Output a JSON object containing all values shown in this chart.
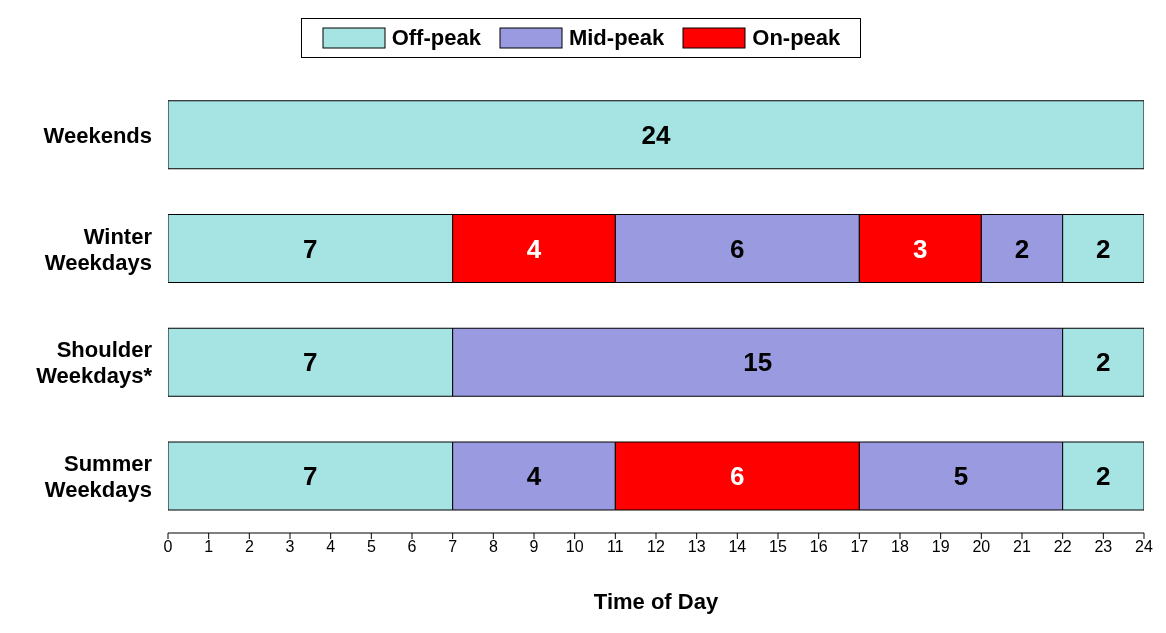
{
  "chart_data": {
    "type": "bar",
    "orientation": "horizontal",
    "stacked": true,
    "xlabel": "Time of Day",
    "categories": [
      "Weekends",
      "Winter Weekdays",
      "Shoulder Weekdays*",
      "Summer Weekdays"
    ],
    "series": [
      {
        "name": "Off-peak",
        "color": "#a6e3e3",
        "values": [
          24,
          7,
          7,
          7
        ]
      },
      {
        "name": "Mid-peak",
        "color": "#9a9ae0",
        "values": [
          null,
          null,
          15,
          4
        ]
      },
      {
        "name": "On-peak",
        "color": "#ff0000",
        "values": [
          null,
          4,
          null,
          6
        ]
      },
      {
        "color": "#9a9ae0",
        "values": [
          null,
          6,
          null,
          5
        ]
      },
      {
        "color": "#ff0000",
        "values": [
          null,
          3,
          null,
          null
        ]
      },
      {
        "color": "#9a9ae0",
        "values": [
          null,
          2,
          null,
          null
        ]
      },
      {
        "color": "#a6e3e3",
        "values": [
          null,
          2,
          2,
          2
        ]
      }
    ],
    "xlim": [
      0,
      24
    ],
    "xticks": [
      0,
      1,
      2,
      3,
      4,
      5,
      6,
      7,
      8,
      9,
      10,
      11,
      12,
      13,
      14,
      15,
      16,
      17,
      18,
      19,
      20,
      21,
      22,
      23,
      24
    ],
    "data_labels": true,
    "legend": "top",
    "grid": false
  }
}
